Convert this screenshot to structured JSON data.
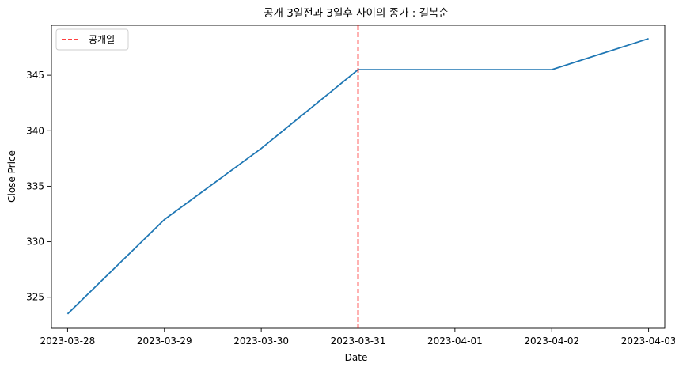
{
  "chart_data": {
    "type": "line",
    "title": "공개 3일전과 3일후 사이의 종가 : 길복순",
    "xlabel": "Date",
    "ylabel": "Close Price",
    "x": [
      "2023-03-28",
      "2023-03-29",
      "2023-03-30",
      "2023-03-31",
      "2023-04-02",
      "2023-04-03"
    ],
    "x_ticks": [
      "2023-03-28",
      "2023-03-29",
      "2023-03-30",
      "2023-03-31",
      "2023-04-01",
      "2023-04-02",
      "2023-04-03"
    ],
    "series": [
      {
        "values": [
          323.5,
          332.0,
          338.4,
          345.5,
          345.5,
          348.3
        ],
        "color": "#1f77b4"
      }
    ],
    "vline": {
      "x": "2023-03-31",
      "label": "공개일",
      "color": "#ff0000",
      "style": "dashed"
    },
    "y_ticks": [
      325,
      330,
      335,
      340,
      345
    ],
    "ylim": [
      322.2,
      349.5
    ],
    "xlim": [
      "2023-03-27T20:00",
      "2023-04-03T04:00"
    ],
    "grid": false,
    "legend_position": "top-left"
  }
}
